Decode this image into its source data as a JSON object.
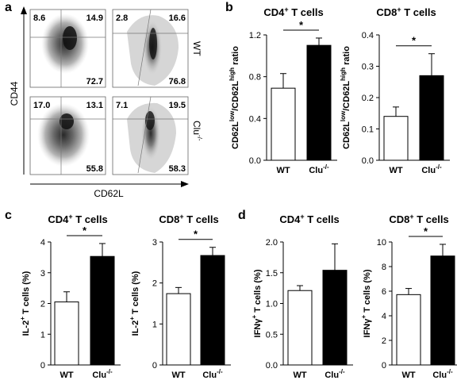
{
  "panels": [
    {
      "letter": "a"
    },
    {
      "letter": "b"
    },
    {
      "letter": "c"
    },
    {
      "letter": "d"
    }
  ],
  "flow": {
    "y_axis": "CD44",
    "x_axis": "CD62L",
    "row_labels": [
      "WT",
      "Clu"
    ],
    "row_label_sup": [
      "",
      "-/-"
    ],
    "quadrants": [
      {
        "ul": "8.6",
        "ur": "14.9",
        "lr": "72.7"
      },
      {
        "ul": "2.8",
        "ur": "16.6",
        "lr": "76.8"
      },
      {
        "ul": "17.0",
        "ur": "13.1",
        "lr": "55.8"
      },
      {
        "ul": "7.1",
        "ur": "19.5",
        "lr": "58.3"
      }
    ]
  },
  "chart_data": [
    {
      "type": "bar",
      "panel": "b",
      "title": "CD4",
      "title_sup": "+",
      "title_rest": " T cells",
      "ylabel": "CD62L(low)/CD62L(high) ratio",
      "categories": [
        "WT",
        "Clu-/-"
      ],
      "values": [
        0.69,
        1.1
      ],
      "errors": [
        0.14,
        0.07
      ],
      "ylim": [
        0,
        1.2
      ],
      "ticks": [
        "0.0",
        "0.4",
        "0.8",
        "1.2"
      ],
      "significance": "*"
    },
    {
      "type": "bar",
      "panel": "b",
      "title": "CD8",
      "title_sup": "+",
      "title_rest": " T cells",
      "ylabel": "CD62L(low)/CD62L(high) ratio",
      "categories": [
        "WT",
        "Clu-/-"
      ],
      "values": [
        0.14,
        0.27
      ],
      "errors": [
        0.03,
        0.07
      ],
      "ylim": [
        0,
        0.4
      ],
      "ticks": [
        "0.0",
        "0.1",
        "0.2",
        "0.3",
        "0.4"
      ],
      "significance": "*"
    },
    {
      "type": "bar",
      "panel": "c",
      "title": "CD4",
      "title_sup": "+",
      "title_rest": " T cells",
      "ylabel": "IL-2+ T cells (%)",
      "categories": [
        "WT",
        "Clu-/-"
      ],
      "values": [
        2.05,
        3.53
      ],
      "errors": [
        0.33,
        0.42
      ],
      "ylim": [
        0,
        4
      ],
      "ticks": [
        "0",
        "1",
        "2",
        "3",
        "4"
      ],
      "significance": "*"
    },
    {
      "type": "bar",
      "panel": "c",
      "title": "CD8",
      "title_sup": "+",
      "title_rest": " T cells",
      "ylabel": "IL-2+ T cells (%)",
      "categories": [
        "WT",
        "Clu-/-"
      ],
      "values": [
        1.74,
        2.67
      ],
      "errors": [
        0.15,
        0.2
      ],
      "ylim": [
        0,
        3
      ],
      "ticks": [
        "0",
        "1",
        "2",
        "3"
      ],
      "significance": "*"
    },
    {
      "type": "bar",
      "panel": "d",
      "title": "CD4",
      "title_sup": "+",
      "title_rest": " T cells",
      "ylabel": "IFNγ+ T cells (%)",
      "categories": [
        "WT",
        "Clu-/-"
      ],
      "values": [
        1.21,
        1.54
      ],
      "errors": [
        0.08,
        0.43
      ],
      "ylim": [
        0,
        2.0
      ],
      "ticks": [
        "0.0",
        "0.5",
        "1.0",
        "1.5",
        "2.0"
      ],
      "significance": ""
    },
    {
      "type": "bar",
      "panel": "d",
      "title": "CD8",
      "title_sup": "+",
      "title_rest": " T cells",
      "ylabel": "IFNγ+ T cells (%)",
      "categories": [
        "WT",
        "Clu-/-"
      ],
      "values": [
        5.72,
        8.86
      ],
      "errors": [
        0.5,
        0.95
      ],
      "ylim": [
        0,
        10
      ],
      "ticks": [
        "0",
        "2",
        "4",
        "6",
        "8",
        "10"
      ],
      "significance": "*"
    }
  ]
}
